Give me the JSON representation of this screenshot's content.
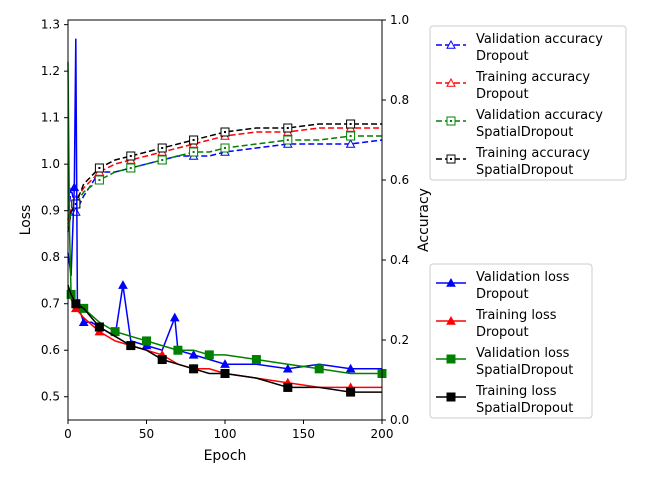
{
  "chart_data": {
    "type": "line",
    "xlabel": "Epoch",
    "ylabel_left": "Loss",
    "ylabel_right": "Accuracy",
    "xlim": [
      0,
      200
    ],
    "ylim_left": [
      0.45,
      1.31
    ],
    "ylim_right": [
      0.0,
      1.0
    ],
    "x_ticks": [
      "0",
      "50",
      "100",
      "150",
      "200"
    ],
    "y_left_ticks": [
      "0.5",
      "0.6",
      "0.7",
      "0.8",
      "0.9",
      "1.0",
      "1.1",
      "1.2",
      "1.3"
    ],
    "y_right_ticks": [
      "0.0",
      "0.2",
      "0.4",
      "0.6",
      "0.8",
      "1.0"
    ],
    "grid": false,
    "legend_accuracy_position": "upper right, outside plot",
    "legend_loss_position": "lower right, outside plot",
    "accuracy_series": [
      {
        "name_line1": "Validation accuracy",
        "name_line2": "Dropout",
        "color": "#0000ff",
        "marker": "open-triangle",
        "style": "dashed",
        "x": [
          0,
          2,
          5,
          10,
          20,
          30,
          40,
          50,
          60,
          70,
          80,
          90,
          100,
          120,
          140,
          160,
          180,
          200
        ],
        "y": [
          0.5,
          0.58,
          0.52,
          0.56,
          0.62,
          0.62,
          0.63,
          0.64,
          0.65,
          0.66,
          0.66,
          0.66,
          0.67,
          0.68,
          0.69,
          0.69,
          0.69,
          0.7
        ]
      },
      {
        "name_line1": "Training accuracy",
        "name_line2": "Dropout",
        "color": "#ff0000",
        "marker": "open-triangle",
        "style": "dashed",
        "x": [
          0,
          2,
          5,
          10,
          20,
          30,
          40,
          50,
          60,
          70,
          80,
          90,
          100,
          120,
          140,
          160,
          180,
          200
        ],
        "y": [
          0.49,
          0.53,
          0.55,
          0.58,
          0.62,
          0.64,
          0.65,
          0.66,
          0.67,
          0.68,
          0.69,
          0.7,
          0.71,
          0.72,
          0.72,
          0.73,
          0.73,
          0.73
        ]
      },
      {
        "name_line1": "Validation accuracy",
        "name_line2": "SpatialDropout",
        "color": "#008000",
        "marker": "open-square-dot",
        "style": "dashed",
        "x": [
          0,
          2,
          5,
          10,
          20,
          30,
          40,
          50,
          60,
          70,
          80,
          90,
          100,
          120,
          140,
          160,
          180,
          200
        ],
        "y": [
          0.48,
          0.52,
          0.54,
          0.57,
          0.6,
          0.62,
          0.63,
          0.64,
          0.65,
          0.66,
          0.67,
          0.67,
          0.68,
          0.69,
          0.7,
          0.7,
          0.71,
          0.71
        ]
      },
      {
        "name_line1": "Training accuracy",
        "name_line2": "SpatialDropout",
        "color": "#000000",
        "marker": "open-square-dot",
        "style": "dashed",
        "x": [
          0,
          2,
          5,
          10,
          20,
          30,
          40,
          50,
          60,
          70,
          80,
          90,
          100,
          120,
          140,
          160,
          180,
          200
        ],
        "y": [
          0.47,
          0.52,
          0.54,
          0.59,
          0.63,
          0.65,
          0.66,
          0.67,
          0.68,
          0.69,
          0.7,
          0.71,
          0.72,
          0.73,
          0.73,
          0.74,
          0.74,
          0.74
        ]
      }
    ],
    "loss_series": [
      {
        "name_line1": "Validation loss",
        "name_line2": "Dropout",
        "color": "#0000ff",
        "marker": "triangle",
        "style": "solid",
        "x": [
          0,
          2,
          4,
          5,
          6,
          8,
          10,
          15,
          20,
          30,
          35,
          40,
          50,
          60,
          68,
          70,
          80,
          90,
          100,
          120,
          140,
          160,
          180,
          200
        ],
        "y": [
          0.81,
          0.76,
          0.95,
          1.27,
          0.7,
          0.68,
          0.66,
          0.66,
          0.65,
          0.63,
          0.74,
          0.62,
          0.61,
          0.6,
          0.67,
          0.6,
          0.59,
          0.58,
          0.57,
          0.57,
          0.56,
          0.57,
          0.56,
          0.56
        ]
      },
      {
        "name_line1": "Training loss",
        "name_line2": "Dropout",
        "color": "#ff0000",
        "marker": "triangle",
        "style": "solid",
        "x": [
          0,
          2,
          5,
          10,
          20,
          30,
          40,
          50,
          60,
          70,
          80,
          90,
          100,
          120,
          140,
          160,
          180,
          200
        ],
        "y": [
          0.74,
          0.71,
          0.69,
          0.67,
          0.64,
          0.62,
          0.61,
          0.6,
          0.59,
          0.57,
          0.56,
          0.56,
          0.55,
          0.54,
          0.53,
          0.52,
          0.52,
          0.52
        ]
      },
      {
        "name_line1": "Validation loss",
        "name_line2": "SpatialDropout",
        "color": "#008000",
        "marker": "square",
        "style": "solid",
        "x": [
          0,
          1,
          2,
          5,
          10,
          20,
          30,
          40,
          50,
          60,
          70,
          80,
          90,
          100,
          120,
          140,
          160,
          180,
          200
        ],
        "y": [
          1.22,
          0.85,
          0.72,
          0.7,
          0.69,
          0.66,
          0.64,
          0.63,
          0.62,
          0.61,
          0.6,
          0.6,
          0.59,
          0.59,
          0.58,
          0.57,
          0.56,
          0.55,
          0.55
        ]
      },
      {
        "name_line1": "Training loss",
        "name_line2": "SpatialDropout",
        "color": "#000000",
        "marker": "square",
        "style": "solid",
        "x": [
          0,
          2,
          5,
          10,
          20,
          30,
          40,
          50,
          60,
          70,
          80,
          90,
          100,
          120,
          140,
          160,
          180,
          200
        ],
        "y": [
          0.74,
          0.72,
          0.7,
          0.69,
          0.65,
          0.63,
          0.61,
          0.6,
          0.58,
          0.57,
          0.56,
          0.55,
          0.55,
          0.54,
          0.52,
          0.52,
          0.51,
          0.51
        ]
      }
    ]
  }
}
